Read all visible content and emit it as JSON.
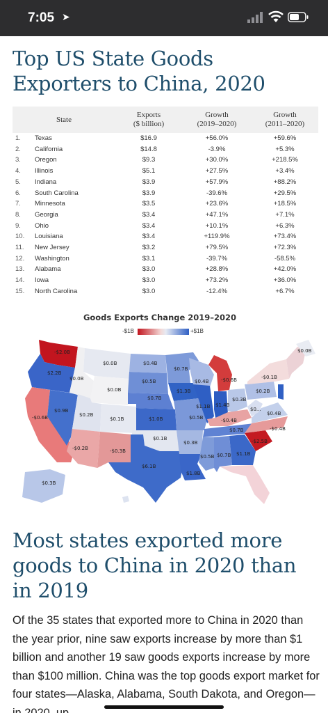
{
  "status_bar": {
    "time": "7:05"
  },
  "article": {
    "title": "Top US State Goods Exporters to China, 2020",
    "table": {
      "headers": {
        "state": "State",
        "exports": "Exports\n($ billion)",
        "growth_1y": "Growth\n(2019–2020)",
        "growth_10y": "Growth\n(2011–2020)"
      },
      "rows": [
        {
          "rank": "1.",
          "state": "Texas",
          "exports": "$16.9",
          "g1": "+56.0%",
          "g2": "+59.6%"
        },
        {
          "rank": "2.",
          "state": "California",
          "exports": "$14.8",
          "g1": "-3.9%",
          "g2": "+5.3%"
        },
        {
          "rank": "3.",
          "state": "Oregon",
          "exports": "$9.3",
          "g1": "+30.0%",
          "g2": "+218.5%"
        },
        {
          "rank": "4.",
          "state": "Illinois",
          "exports": "$5.1",
          "g1": "+27.5%",
          "g2": "+3.4%"
        },
        {
          "rank": "5.",
          "state": "Indiana",
          "exports": "$3.9",
          "g1": "+57.9%",
          "g2": "+88.2%"
        },
        {
          "rank": "6.",
          "state": "South Carolina",
          "exports": "$3.9",
          "g1": "-39.6%",
          "g2": "+29.5%"
        },
        {
          "rank": "7.",
          "state": "Minnesota",
          "exports": "$3.5",
          "g1": "+23.6%",
          "g2": "+18.5%"
        },
        {
          "rank": "8.",
          "state": "Georgia",
          "exports": "$3.4",
          "g1": "+47.1%",
          "g2": "+7.1%"
        },
        {
          "rank": "9.",
          "state": "Ohio",
          "exports": "$3.4",
          "g1": "+10.1%",
          "g2": "+6.3%"
        },
        {
          "rank": "10.",
          "state": "Louisiana",
          "exports": "$3.4",
          "g1": "+119.9%",
          "g2": "+73.4%"
        },
        {
          "rank": "11.",
          "state": "New Jersey",
          "exports": "$3.2",
          "g1": "+79.5%",
          "g2": "+72.3%"
        },
        {
          "rank": "12.",
          "state": "Washington",
          "exports": "$3.1",
          "g1": "-39.7%",
          "g2": "-58.5%"
        },
        {
          "rank": "13.",
          "state": "Alabama",
          "exports": "$3.0",
          "g1": "+28.8%",
          "g2": "+42.0%"
        },
        {
          "rank": "14.",
          "state": "Iowa",
          "exports": "$3.0",
          "g1": "+73.2%",
          "g2": "+36.0%"
        },
        {
          "rank": "15.",
          "state": "North Carolina",
          "exports": "$3.0",
          "g1": "-12.4%",
          "g2": "+6.7%"
        }
      ]
    },
    "map": {
      "title": "Goods Exports Change 2019–2020",
      "legend_min": "-$1B",
      "legend_max": "+$1B",
      "colors": {
        "negative": "#c2151f",
        "positive": "#2f5fc4",
        "neutral": "#e8eaf0"
      },
      "labels": {
        "wa": "-$2.0B",
        "or": "$2.2B",
        "id": "$0.0B",
        "mt": "$0.0B",
        "nd": "$0.4B",
        "mn": "$0.7B",
        "wi": "$0.4B",
        "mi": "-$0.6B",
        "me": "$0.0B",
        "ny": "-$0.1B",
        "wy": "$0.0B",
        "sd": "$0.5B",
        "ne": "$0.7B",
        "ia": "$1.3B",
        "nv": "$0.9B",
        "ut": "$0.2B",
        "co": "$0.1B",
        "ks": "$1.0B",
        "mo": "$0.5B",
        "il": "$1.1B",
        "in": "$1.4B",
        "oh": "$0.3B",
        "pa": "$0.2B",
        "ca": "-$0.6B",
        "ky": "-$0.4B",
        "wv": "$0...",
        "va": "$0.4B",
        "nc": "-$0.4B",
        "az": "-$0.2B",
        "nm": "-$0.3B",
        "ok": "$0.1B",
        "ar": "$0.3B",
        "tn": "$0.7B",
        "ms": "$0.5B",
        "al": "$0.7B",
        "ga": "$1.1B",
        "sc": "-$2.5B",
        "tx": "$6.1B",
        "la": "$1.8B",
        "ak": "$0.3B"
      }
    },
    "section_heading": "Most states exported more goods to China in 2020 than in 2019",
    "body": "Of the 35 states that exported more to China in 2020 than the year prior, nine saw exports increase by more than $1 billion and another 19 saw goods exports increase by more than $100 million. China was the top goods export market for four states—Alaska, Alabama, South Dakota, and Oregon—in 2020, up"
  }
}
